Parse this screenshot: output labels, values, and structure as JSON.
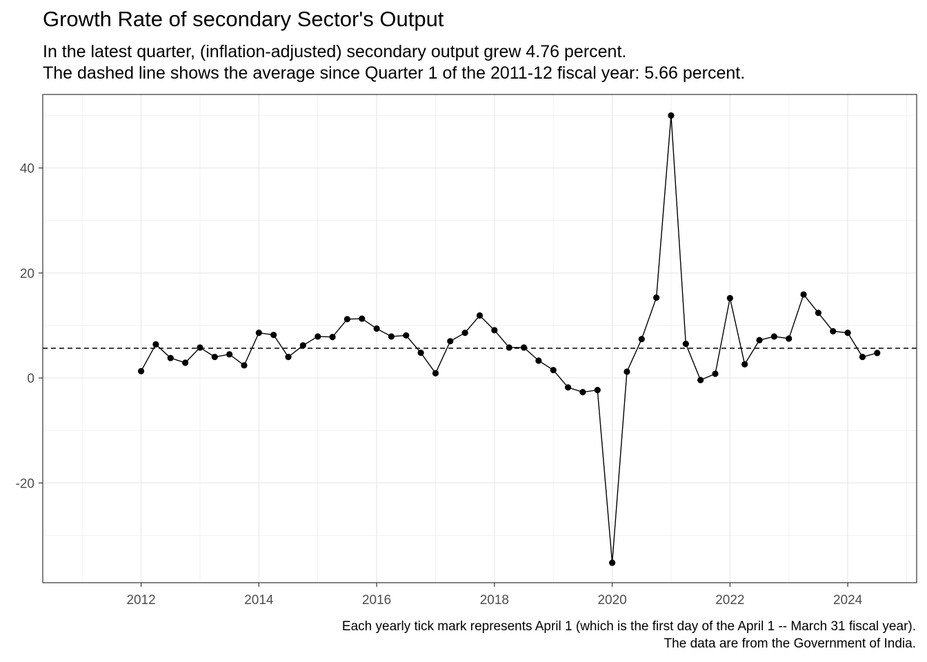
{
  "chart_data": {
    "type": "line",
    "title": "Growth Rate of secondary Sector's Output",
    "subtitle_lines": [
      "In the latest quarter, (inflation-adjusted) secondary output grew 4.76 percent.",
      "The dashed line shows the average since Quarter 1 of the 2011-12 fiscal year: 5.66 percent."
    ],
    "caption_lines": [
      "Each yearly tick mark represents April 1 (which is the first day of the April 1 -- March 31 fiscal year).",
      "The data are from the Government of India."
    ],
    "xlabel": "",
    "ylabel": "",
    "x_ticks": [
      "2012",
      "2014",
      "2016",
      "2018",
      "2020",
      "2022",
      "2024"
    ],
    "y_ticks": [
      "-20",
      "0",
      "20",
      "40"
    ],
    "xlim": [
      2010.33,
      2025.17
    ],
    "ylim": [
      -39,
      54
    ],
    "grid": true,
    "mean_line": 5.66,
    "series": [
      {
        "x": [
          2012.0,
          2012.25,
          2012.5,
          2012.75,
          2013.0,
          2013.25,
          2013.5,
          2013.75,
          2014.0,
          2014.25,
          2014.5,
          2014.75,
          2015.0,
          2015.25,
          2015.5,
          2015.75,
          2016.0,
          2016.25,
          2016.5,
          2016.75,
          2017.0,
          2017.25,
          2017.5,
          2017.75,
          2018.0,
          2018.25,
          2018.5,
          2018.75,
          2019.0,
          2019.25,
          2019.5,
          2019.75,
          2020.0,
          2020.25,
          2020.5,
          2020.75,
          2021.0,
          2021.25,
          2021.5,
          2021.75,
          2022.0,
          2022.25,
          2022.5,
          2022.75,
          2023.0,
          2023.25,
          2023.5,
          2023.75,
          2024.0,
          2024.25,
          2024.5
        ],
        "y": [
          1.3,
          6.4,
          3.8,
          2.9,
          5.8,
          4.0,
          4.5,
          2.4,
          8.6,
          8.2,
          4.0,
          6.2,
          7.9,
          7.8,
          11.2,
          11.3,
          9.4,
          7.9,
          8.1,
          4.8,
          0.9,
          7.0,
          8.6,
          11.9,
          9.1,
          5.8,
          5.8,
          3.3,
          1.5,
          -1.8,
          -2.7,
          -2.3,
          -35.2,
          1.2,
          7.4,
          15.3,
          50.0,
          6.5,
          -0.4,
          0.8,
          15.2,
          2.6,
          7.2,
          7.9,
          7.5,
          15.9,
          12.4,
          8.9,
          8.6,
          4.0,
          4.76
        ]
      }
    ]
  }
}
